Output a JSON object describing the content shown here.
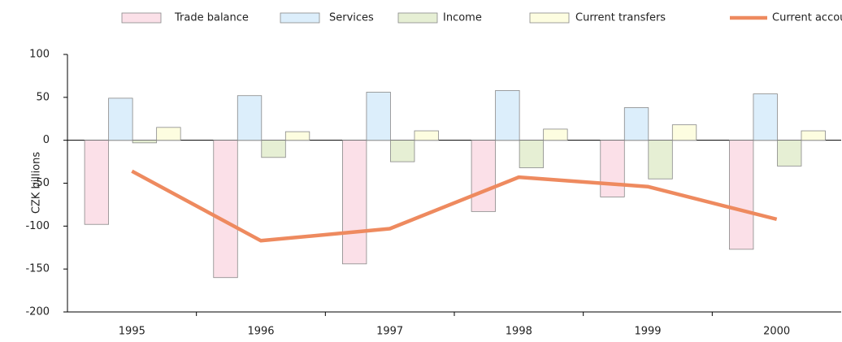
{
  "chart_data": {
    "type": "bar",
    "y_label": "CZK billions",
    "categories": [
      "1995",
      "1996",
      "1997",
      "1998",
      "1999",
      "2000"
    ],
    "series": [
      {
        "name": "Trade balance",
        "color": "#fbe0e8",
        "values": [
          -98,
          -160,
          -144,
          -83,
          -66,
          -127
        ]
      },
      {
        "name": "Services",
        "color": "#dceefb",
        "values": [
          49,
          52,
          56,
          58,
          38,
          54
        ]
      },
      {
        "name": "Income",
        "color": "#e6efd4",
        "values": [
          -3,
          -20,
          -25,
          -32,
          -45,
          -30
        ]
      },
      {
        "name": "Current transfers",
        "color": "#fdfde0",
        "values": [
          15,
          10,
          11,
          13,
          18,
          11
        ]
      },
      {
        "name": "Current account",
        "color": "#ee8a5f",
        "type": "line",
        "values": [
          -36,
          -117,
          -103,
          -43,
          -54,
          -92
        ]
      }
    ],
    "ylim": [
      -200,
      100
    ],
    "yticks": [
      -200,
      -150,
      -100,
      -50,
      0,
      50,
      100
    ],
    "legend": "top",
    "grid": false
  }
}
